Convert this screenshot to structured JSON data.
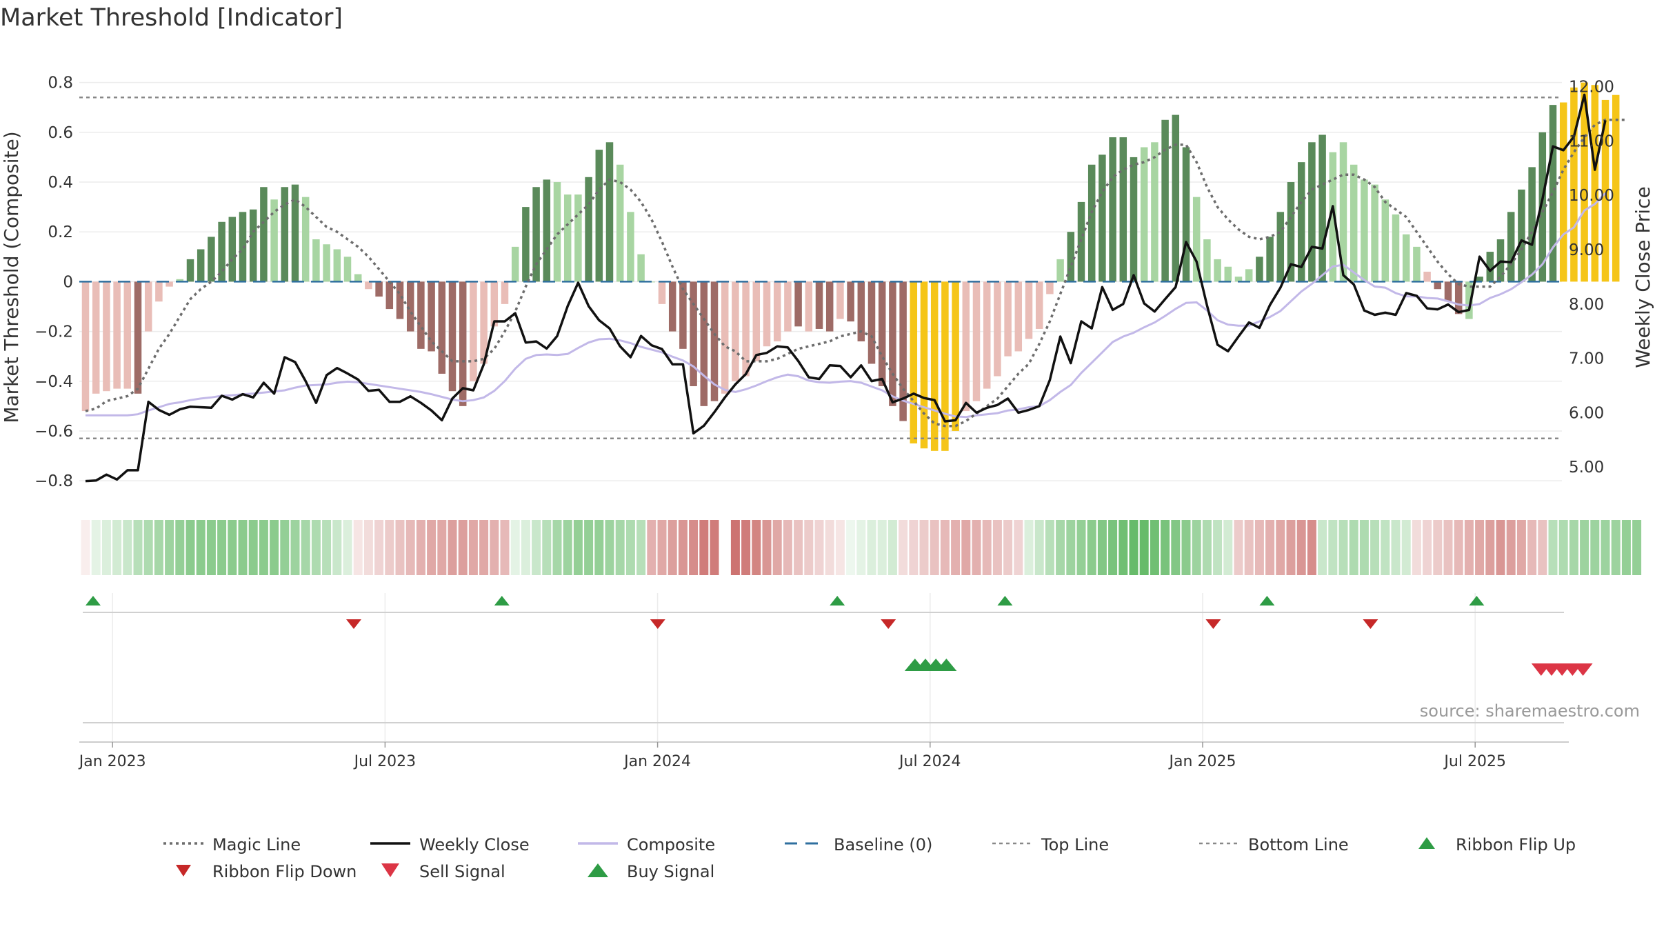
{
  "title": "Market Threshold [Indicator]",
  "source": "source: sharemaestro.com",
  "colors": {
    "bar_green_dark": "#5a8a5a",
    "bar_green_light": "#a8d5a2",
    "bar_red_dark": "#9e6b66",
    "bar_red_light": "#e9bdb7",
    "bar_yellow": "#f5c518",
    "close": "#111111",
    "composite": "#c2b8e8",
    "magic": "#6d6d6d",
    "baseline": "#2f6f9f",
    "ref_lines": "#888888",
    "flip_up": "#2e9c45",
    "flip_down": "#c62828",
    "sell": "#dc3545",
    "buy": "#2e9c45",
    "ribbon_green": "#4caf50",
    "ribbon_red": "#c0504d"
  },
  "chart_data": {
    "type": "bar",
    "title": "Market Threshold [Indicator]",
    "ylabel": "Market Threshold (Composite)",
    "y2label": "Weekly Close Price",
    "ylim": [
      -0.88,
      0.86
    ],
    "y2lim": [
      4.38,
      12.35
    ],
    "yticks": [
      0.8,
      0.6,
      0.4,
      0.2,
      0,
      -0.2,
      -0.4,
      -0.6,
      -0.8
    ],
    "ytick_labels": [
      "0.8",
      "0.6",
      "0.4",
      "0.2",
      "0",
      "−0.2",
      "−0.4",
      "−0.6",
      "−0.8"
    ],
    "y2ticks": [
      12,
      11,
      10,
      9,
      8,
      7,
      6,
      5
    ],
    "y2tick_labels": [
      "12.00",
      "11.00",
      "10.00",
      "9.00",
      "8.00",
      "7.00",
      "6.00",
      "5.00"
    ],
    "xlabels": [
      "Jan 2023",
      "Jul 2023",
      "Jan 2024",
      "Jul 2024",
      "Jan 2025",
      "Jul 2025"
    ],
    "xlabel_weeks": [
      1,
      27,
      53,
      79,
      105,
      131
    ],
    "weeks": 144,
    "top_line": 0.74,
    "bottom_line": -0.63,
    "baseline": 0,
    "composite_bars": [
      -0.52,
      -0.45,
      -0.44,
      -0.43,
      -0.43,
      -0.45,
      -0.2,
      -0.08,
      -0.02,
      0.01,
      0.09,
      0.13,
      0.18,
      0.24,
      0.26,
      0.28,
      0.29,
      0.38,
      0.33,
      0.38,
      0.39,
      0.34,
      0.17,
      0.15,
      0.13,
      0.1,
      0.03,
      -0.03,
      -0.06,
      -0.11,
      -0.15,
      -0.2,
      -0.27,
      -0.28,
      -0.37,
      -0.44,
      -0.5,
      -0.4,
      -0.33,
      -0.18,
      -0.09,
      0.14,
      0.3,
      0.38,
      0.41,
      0.4,
      0.35,
      0.35,
      0.42,
      0.53,
      0.56,
      0.47,
      0.28,
      0.11,
      0.0,
      -0.09,
      -0.2,
      -0.27,
      -0.42,
      -0.5,
      -0.48,
      -0.45,
      -0.4,
      -0.38,
      -0.32,
      -0.26,
      -0.24,
      -0.2,
      -0.18,
      -0.2,
      -0.19,
      -0.2,
      -0.15,
      -0.16,
      -0.24,
      -0.33,
      -0.42,
      -0.5,
      -0.56,
      -0.65,
      -0.67,
      -0.68,
      -0.68,
      -0.6,
      -0.52,
      -0.48,
      -0.43,
      -0.38,
      -0.3,
      -0.28,
      -0.23,
      -0.19,
      -0.05,
      0.09,
      0.2,
      0.32,
      0.47,
      0.51,
      0.58,
      0.58,
      0.5,
      0.54,
      0.56,
      0.65,
      0.67,
      0.54,
      0.34,
      0.17,
      0.09,
      0.06,
      0.02,
      0.05,
      0.1,
      0.18,
      0.28,
      0.4,
      0.48,
      0.56,
      0.59,
      0.52,
      0.56,
      0.47,
      0.41,
      0.39,
      0.33,
      0.27,
      0.19,
      0.14,
      0.04,
      -0.03,
      -0.08,
      -0.13,
      -0.15,
      0.02,
      0.12,
      0.17,
      0.28,
      0.37,
      0.46,
      0.6,
      0.71,
      0.72,
      0.78,
      0.8,
      0.79,
      0.73,
      0.75
    ],
    "bar_colors": [
      "lr",
      "lr",
      "lr",
      "lr",
      "lr",
      "dr",
      "lr",
      "lr",
      "lr",
      "lg",
      "dg",
      "dg",
      "dg",
      "dg",
      "dg",
      "dg",
      "dg",
      "dg",
      "lg",
      "dg",
      "dg",
      "lg",
      "lg",
      "lg",
      "lg",
      "lg",
      "lg",
      "lr",
      "dr",
      "dr",
      "dr",
      "dr",
      "dr",
      "dr",
      "dr",
      "dr",
      "dr",
      "lr",
      "lr",
      "lr",
      "lr",
      "lg",
      "dg",
      "dg",
      "dg",
      "lg",
      "lg",
      "lg",
      "dg",
      "dg",
      "dg",
      "lg",
      "lg",
      "lg",
      "lg",
      "lr",
      "dr",
      "dr",
      "dr",
      "dr",
      "dr",
      "lr",
      "lr",
      "lr",
      "lr",
      "lr",
      "lr",
      "lr",
      "dr",
      "lr",
      "dr",
      "dr",
      "lr",
      "dr",
      "dr",
      "dr",
      "dr",
      "dr",
      "dr",
      "yl",
      "yl",
      "yl",
      "yl",
      "yl",
      "lr",
      "lr",
      "lr",
      "lr",
      "lr",
      "lr",
      "lr",
      "lr",
      "lr",
      "lg",
      "dg",
      "dg",
      "dg",
      "dg",
      "dg",
      "dg",
      "dg",
      "lg",
      "lg",
      "dg",
      "dg",
      "dg",
      "lg",
      "lg",
      "lg",
      "lg",
      "lg",
      "lg",
      "dg",
      "dg",
      "dg",
      "dg",
      "dg",
      "dg",
      "dg",
      "lg",
      "lg",
      "lg",
      "lg",
      "lg",
      "lg",
      "lg",
      "lg",
      "lg",
      "lr",
      "dr",
      "dr",
      "dr",
      "lg",
      "dg",
      "dg",
      "dg",
      "dg",
      "dg",
      "dg",
      "dg",
      "dg",
      "yl",
      "yl",
      "yl",
      "yl",
      "yl",
      "yl",
      "yl"
    ],
    "series": [
      {
        "name": "Weekly Close",
        "axis": "right",
        "values": [
          4.74,
          4.75,
          4.86,
          4.77,
          4.94,
          4.94,
          6.2,
          6.05,
          5.96,
          6.06,
          6.11,
          6.1,
          6.09,
          6.31,
          6.24,
          6.34,
          6.28,
          6.55,
          6.35,
          7.02,
          6.93,
          6.58,
          6.18,
          6.69,
          6.82,
          6.72,
          6.61,
          6.4,
          6.42,
          6.2,
          6.2,
          6.3,
          6.18,
          6.04,
          5.86,
          6.26,
          6.45,
          6.41,
          6.89,
          7.68,
          7.68,
          7.83,
          7.29,
          7.31,
          7.18,
          7.41,
          7.96,
          8.39,
          7.96,
          7.7,
          7.55,
          7.22,
          7.02,
          7.41,
          7.24,
          7.17,
          6.89,
          6.89,
          5.62,
          5.76,
          6.01,
          6.28,
          6.52,
          6.71,
          7.06,
          7.1,
          7.22,
          7.2,
          6.95,
          6.65,
          6.62,
          6.87,
          6.86,
          6.65,
          6.87,
          6.58,
          6.62,
          6.19,
          6.26,
          6.35,
          6.27,
          6.23,
          5.84,
          5.86,
          6.18,
          6.0,
          6.09,
          6.14,
          6.26,
          6.0,
          6.05,
          6.12,
          6.6,
          7.4,
          6.91,
          7.68,
          7.55,
          8.31,
          7.89,
          8.0,
          8.53,
          8.01,
          7.86,
          8.09,
          8.31,
          9.14,
          8.78,
          7.97,
          7.25,
          7.13,
          7.4,
          7.66,
          7.56,
          7.98,
          8.3,
          8.73,
          8.68,
          9.05,
          9.02,
          9.8,
          8.53,
          8.36,
          7.88,
          7.8,
          7.84,
          7.8,
          8.2,
          8.15,
          7.92,
          7.9,
          7.99,
          7.85,
          7.89,
          8.87,
          8.61,
          8.78,
          8.77,
          9.17,
          9.09,
          9.93,
          10.9,
          10.83,
          11.08,
          11.85,
          10.47,
          11.38
        ]
      },
      {
        "name": "Composite",
        "axis": "right",
        "values": [
          5.95,
          5.95,
          5.95,
          5.95,
          5.95,
          5.97,
          6.04,
          6.1,
          6.16,
          6.19,
          6.23,
          6.26,
          6.28,
          6.31,
          6.32,
          6.34,
          6.35,
          6.37,
          6.39,
          6.41,
          6.46,
          6.5,
          6.51,
          6.52,
          6.55,
          6.57,
          6.56,
          6.53,
          6.5,
          6.47,
          6.44,
          6.41,
          6.38,
          6.34,
          6.29,
          6.24,
          6.21,
          6.23,
          6.28,
          6.4,
          6.58,
          6.81,
          6.99,
          7.06,
          7.07,
          7.06,
          7.08,
          7.19,
          7.29,
          7.35,
          7.36,
          7.33,
          7.28,
          7.21,
          7.16,
          7.11,
          7.03,
          6.96,
          6.85,
          6.68,
          6.52,
          6.42,
          6.38,
          6.43,
          6.5,
          6.58,
          6.65,
          6.7,
          6.67,
          6.59,
          6.56,
          6.55,
          6.57,
          6.58,
          6.55,
          6.48,
          6.41,
          6.3,
          6.22,
          6.16,
          6.1,
          6.04,
          5.98,
          5.93,
          5.92,
          5.95,
          5.97,
          5.99,
          6.04,
          6.06,
          6.1,
          6.12,
          6.23,
          6.38,
          6.51,
          6.73,
          6.92,
          7.11,
          7.3,
          7.4,
          7.47,
          7.57,
          7.66,
          7.78,
          7.91,
          8.02,
          8.03,
          7.88,
          7.7,
          7.62,
          7.6,
          7.6,
          7.68,
          7.76,
          7.87,
          8.05,
          8.23,
          8.37,
          8.53,
          8.69,
          8.72,
          8.58,
          8.44,
          8.32,
          8.3,
          8.2,
          8.14,
          8.14,
          8.11,
          8.1,
          8.05,
          7.99,
          7.97,
          8.0,
          8.11,
          8.18,
          8.27,
          8.4,
          8.54,
          8.73,
          9.04,
          9.28,
          9.41,
          9.72,
          9.84,
          10.04
        ]
      },
      {
        "name": "Magic Line",
        "axis": "left",
        "values": [
          -0.52,
          -0.51,
          -0.48,
          -0.47,
          -0.46,
          -0.43,
          -0.35,
          -0.27,
          -0.21,
          -0.14,
          -0.07,
          -0.03,
          0.0,
          0.04,
          0.09,
          0.13,
          0.2,
          0.24,
          0.28,
          0.31,
          0.33,
          0.3,
          0.26,
          0.22,
          0.2,
          0.17,
          0.14,
          0.1,
          0.05,
          0.0,
          -0.05,
          -0.12,
          -0.18,
          -0.24,
          -0.28,
          -0.32,
          -0.32,
          -0.32,
          -0.31,
          -0.27,
          -0.2,
          -0.12,
          -0.02,
          0.07,
          0.13,
          0.19,
          0.23,
          0.27,
          0.31,
          0.37,
          0.41,
          0.4,
          0.37,
          0.32,
          0.25,
          0.16,
          0.06,
          -0.03,
          -0.09,
          -0.15,
          -0.21,
          -0.26,
          -0.28,
          -0.32,
          -0.32,
          -0.32,
          -0.31,
          -0.29,
          -0.27,
          -0.26,
          -0.25,
          -0.24,
          -0.22,
          -0.21,
          -0.2,
          -0.22,
          -0.3,
          -0.37,
          -0.43,
          -0.48,
          -0.53,
          -0.57,
          -0.58,
          -0.58,
          -0.56,
          -0.53,
          -0.5,
          -0.47,
          -0.42,
          -0.37,
          -0.33,
          -0.25,
          -0.16,
          -0.05,
          0.06,
          0.17,
          0.28,
          0.36,
          0.42,
          0.45,
          0.47,
          0.48,
          0.5,
          0.53,
          0.55,
          0.55,
          0.48,
          0.38,
          0.3,
          0.25,
          0.21,
          0.18,
          0.17,
          0.18,
          0.2,
          0.26,
          0.32,
          0.37,
          0.39,
          0.41,
          0.43,
          0.43,
          0.41,
          0.38,
          0.32,
          0.29,
          0.26,
          0.2,
          0.14,
          0.08,
          0.03,
          -0.01,
          -0.02,
          -0.02,
          -0.02,
          0.02,
          0.07,
          0.13,
          0.2,
          0.28,
          0.36,
          0.45,
          0.52,
          0.58,
          0.63,
          0.65,
          0.65,
          0.65
        ]
      }
    ],
    "ribbon": [
      -0.1,
      0.15,
      0.2,
      0.25,
      0.3,
      0.4,
      0.45,
      0.5,
      0.55,
      0.6,
      0.65,
      0.65,
      0.65,
      0.65,
      0.65,
      0.65,
      0.65,
      0.65,
      0.65,
      0.6,
      0.55,
      0.5,
      0.45,
      0.4,
      0.3,
      0.2,
      -0.15,
      -0.2,
      -0.25,
      -0.3,
      -0.35,
      -0.4,
      -0.45,
      -0.5,
      -0.5,
      -0.55,
      -0.55,
      -0.5,
      -0.5,
      -0.45,
      -0.4,
      0.15,
      0.2,
      0.3,
      0.4,
      0.5,
      0.55,
      0.6,
      0.6,
      0.6,
      0.55,
      0.5,
      0.45,
      0.4,
      -0.45,
      -0.5,
      -0.55,
      -0.6,
      -0.65,
      -0.75,
      -0.75,
      0,
      -0.8,
      -0.75,
      -0.7,
      -0.6,
      -0.5,
      -0.4,
      -0.35,
      -0.3,
      -0.25,
      -0.2,
      -0.15,
      0.1,
      0.15,
      0.2,
      0.2,
      0.25,
      -0.2,
      -0.25,
      -0.3,
      -0.35,
      -0.4,
      -0.45,
      -0.5,
      -0.45,
      -0.4,
      -0.35,
      -0.3,
      -0.25,
      0.2,
      0.3,
      0.4,
      0.5,
      0.55,
      0.6,
      0.65,
      0.7,
      0.75,
      0.8,
      0.85,
      0.85,
      0.8,
      0.75,
      0.7,
      0.65,
      0.55,
      0.45,
      0.35,
      0.25,
      -0.3,
      -0.35,
      -0.4,
      -0.45,
      -0.5,
      -0.55,
      -0.6,
      -0.65,
      0.3,
      0.35,
      0.4,
      0.45,
      0.45,
      0.4,
      0.35,
      0.3,
      0.25,
      -0.2,
      -0.25,
      -0.3,
      -0.35,
      -0.4,
      -0.45,
      -0.5,
      -0.55,
      -0.6,
      -0.55,
      -0.5,
      -0.4,
      -0.35,
      0.4,
      0.45,
      0.5,
      0.55,
      0.55,
      0.55,
      0.55,
      0.6,
      0.6
    ],
    "flip_up_weeks": [
      1,
      40,
      72,
      88,
      113,
      133
    ],
    "flip_down_weeks": [
      25,
      54,
      76,
      107,
      122
    ],
    "buy_weeks": [
      79,
      80,
      81,
      82
    ],
    "sell_weeks": [
      139,
      140,
      141,
      142,
      143
    ],
    "legend": [
      {
        "label": "Magic Line",
        "marker": "dotted"
      },
      {
        "label": "Weekly Close",
        "marker": "solid"
      },
      {
        "label": "Composite",
        "marker": "solid-light"
      },
      {
        "label": "Baseline (0)",
        "marker": "dashed"
      },
      {
        "label": "Top Line",
        "marker": "fine-dash"
      },
      {
        "label": "Bottom Line",
        "marker": "fine-dash"
      },
      {
        "label": "Ribbon Flip Up",
        "marker": "tri-up"
      },
      {
        "label": "Ribbon Flip Down",
        "marker": "tri-down"
      },
      {
        "label": "Sell Signal",
        "marker": "tri-down-big"
      },
      {
        "label": "Buy Signal",
        "marker": "tri-up-big"
      }
    ]
  }
}
